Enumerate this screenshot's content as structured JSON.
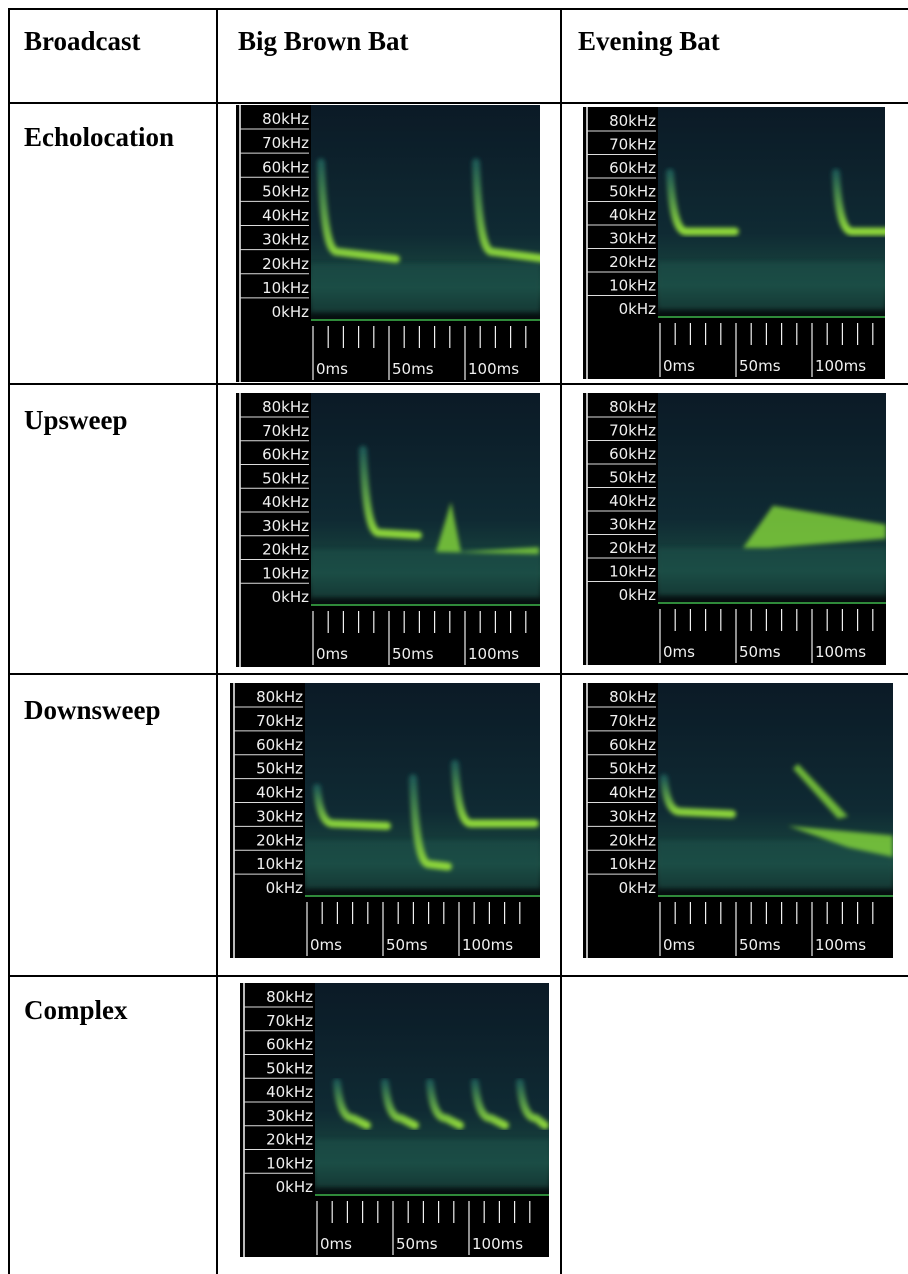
{
  "table": {
    "header": [
      "Broadcast",
      "Big Brown Bat",
      "Evening Bat"
    ],
    "rows": [
      [
        "Echolocation"
      ],
      [
        "Upsweep"
      ],
      [
        "Downsweep"
      ],
      [
        "Complex"
      ]
    ]
  },
  "spectrogram_axis": {
    "frequency_labels": [
      "80kHz",
      "70kHz",
      "60kHz",
      "50kHz",
      "40kHz",
      "30kHz",
      "20kHz",
      "10kHz",
      "0kHz"
    ],
    "time_labels": [
      "0ms",
      "50ms",
      "100ms"
    ]
  }
}
